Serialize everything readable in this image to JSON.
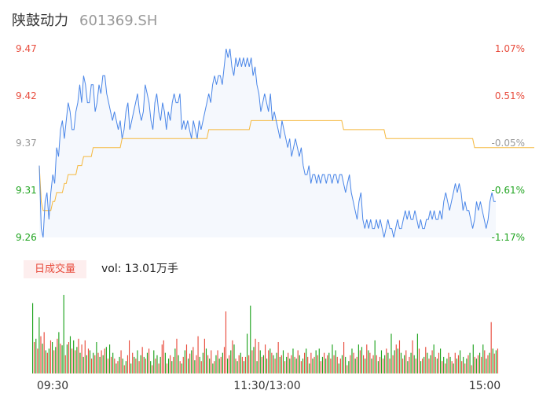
{
  "header": {
    "name": "陕鼓动力",
    "code": "601369.SH"
  },
  "colors": {
    "up": "#e84c3d",
    "down": "#1ea31e",
    "neutral": "#999999",
    "price_line": "#4a86e8",
    "avg_line": "#f5b83d"
  },
  "volume_panel": {
    "badge": "日成交量",
    "label": "vol: 13.01万手"
  },
  "chart_data": [
    {
      "type": "line",
      "name": "intraday-price",
      "y_left_ticks": [
        "9.47",
        "9.42",
        "9.37",
        "9.31",
        "9.26"
      ],
      "y_right_ticks": [
        "1.07%",
        "0.51%",
        "-0.05%",
        "-0.61%",
        "-1.17%"
      ],
      "ylim": [
        9.26,
        9.47
      ],
      "prev_close": 9.375,
      "series": [
        {
          "name": "price",
          "values": [
            9.34,
            9.27,
            9.26,
            9.3,
            9.31,
            9.28,
            9.31,
            9.33,
            9.32,
            9.36,
            9.35,
            9.38,
            9.39,
            9.37,
            9.39,
            9.41,
            9.4,
            9.38,
            9.38,
            9.4,
            9.41,
            9.43,
            9.41,
            9.44,
            9.43,
            9.41,
            9.41,
            9.43,
            9.43,
            9.4,
            9.41,
            9.43,
            9.42,
            9.44,
            9.44,
            9.42,
            9.41,
            9.4,
            9.39,
            9.4,
            9.39,
            9.38,
            9.39,
            9.37,
            9.38,
            9.4,
            9.41,
            9.38,
            9.39,
            9.4,
            9.41,
            9.42,
            9.4,
            9.39,
            9.4,
            9.43,
            9.42,
            9.41,
            9.39,
            9.38,
            9.41,
            9.42,
            9.4,
            9.39,
            9.41,
            9.4,
            9.38,
            9.4,
            9.39,
            9.41,
            9.42,
            9.41,
            9.41,
            9.42,
            9.38,
            9.39,
            9.38,
            9.39,
            9.38,
            9.37,
            9.39,
            9.38,
            9.37,
            9.39,
            9.38,
            9.39,
            9.4,
            9.41,
            9.42,
            9.41,
            9.43,
            9.44,
            9.43,
            9.44,
            9.44,
            9.43,
            9.45,
            9.47,
            9.46,
            9.47,
            9.45,
            9.44,
            9.46,
            9.45,
            9.46,
            9.45,
            9.46,
            9.45,
            9.46,
            9.45,
            9.46,
            9.44,
            9.45,
            9.43,
            9.42,
            9.4,
            9.41,
            9.42,
            9.41,
            9.4,
            9.42,
            9.39,
            9.4,
            9.39,
            9.38,
            9.37,
            9.39,
            9.38,
            9.37,
            9.36,
            9.37,
            9.35,
            9.36,
            9.37,
            9.36,
            9.35,
            9.36,
            9.34,
            9.33,
            9.33,
            9.34,
            9.32,
            9.33,
            9.33,
            9.32,
            9.33,
            9.32,
            9.33,
            9.33,
            9.32,
            9.33,
            9.33,
            9.32,
            9.33,
            9.33,
            9.32,
            9.33,
            9.33,
            9.32,
            9.31,
            9.32,
            9.33,
            9.31,
            9.3,
            9.29,
            9.28,
            9.3,
            9.31,
            9.28,
            9.27,
            9.28,
            9.27,
            9.28,
            9.27,
            9.27,
            9.28,
            9.27,
            9.28,
            9.27,
            9.26,
            9.27,
            9.28,
            9.27,
            9.27,
            9.26,
            9.27,
            9.28,
            9.27,
            9.27,
            9.28,
            9.29,
            9.28,
            9.29,
            9.28,
            9.28,
            9.29,
            9.28,
            9.27,
            9.28,
            9.27,
            9.27,
            9.28,
            9.28,
            9.29,
            9.28,
            9.29,
            9.28,
            9.28,
            9.29,
            9.28,
            9.3,
            9.31,
            9.3,
            9.29,
            9.3,
            9.31,
            9.32,
            9.31,
            9.32,
            9.31,
            9.29,
            9.3,
            9.29,
            9.29,
            9.28,
            9.27,
            9.28,
            9.3,
            9.29,
            9.3,
            9.29,
            9.28,
            9.27,
            9.28,
            9.3,
            9.31,
            9.3,
            9.3
          ]
        },
        {
          "name": "average",
          "values": [
            9.34,
            9.3,
            9.29,
            9.29,
            9.29,
            9.29,
            9.29,
            9.3,
            9.3,
            9.31,
            9.31,
            9.31,
            9.31,
            9.32,
            9.32,
            9.33,
            9.33,
            9.33,
            9.33,
            9.33,
            9.34,
            9.34,
            9.34,
            9.35,
            9.35,
            9.35,
            9.35,
            9.35,
            9.36,
            9.36,
            9.36,
            9.36,
            9.36,
            9.36,
            9.36,
            9.36,
            9.36,
            9.36,
            9.36,
            9.36,
            9.36,
            9.36,
            9.36,
            9.37,
            9.37,
            9.37,
            9.37,
            9.37,
            9.37,
            9.37,
            9.37,
            9.37,
            9.37,
            9.37,
            9.37,
            9.37,
            9.37,
            9.37,
            9.37,
            9.37,
            9.37,
            9.37,
            9.37,
            9.37,
            9.37,
            9.37,
            9.37,
            9.37,
            9.37,
            9.37,
            9.37,
            9.37,
            9.37,
            9.37,
            9.37,
            9.37,
            9.37,
            9.37,
            9.37,
            9.37,
            9.37,
            9.37,
            9.37,
            9.37,
            9.37,
            9.37,
            9.37,
            9.37,
            9.38,
            9.38,
            9.38,
            9.38,
            9.38,
            9.38,
            9.38,
            9.38,
            9.38,
            9.38,
            9.38,
            9.38,
            9.38,
            9.38,
            9.38,
            9.38,
            9.38,
            9.38,
            9.38,
            9.38,
            9.38,
            9.38,
            9.39,
            9.39,
            9.39,
            9.39,
            9.39,
            9.39,
            9.39,
            9.39,
            9.39,
            9.39,
            9.39,
            9.39,
            9.39,
            9.39,
            9.39,
            9.39,
            9.39,
            9.39,
            9.39,
            9.39,
            9.39,
            9.39,
            9.39,
            9.39,
            9.39,
            9.39,
            9.39,
            9.39,
            9.39,
            9.39,
            9.39,
            9.39,
            9.39,
            9.39,
            9.39,
            9.39,
            9.39,
            9.39,
            9.39,
            9.39,
            9.39,
            9.39,
            9.39,
            9.39,
            9.39,
            9.39,
            9.39,
            9.39,
            9.38,
            9.38,
            9.38,
            9.38,
            9.38,
            9.38,
            9.38,
            9.38,
            9.38,
            9.38,
            9.38,
            9.38,
            9.38,
            9.38,
            9.38,
            9.38,
            9.38,
            9.38,
            9.38,
            9.38,
            9.38,
            9.38,
            9.37,
            9.37,
            9.37,
            9.37,
            9.37,
            9.37,
            9.37,
            9.37,
            9.37,
            9.37,
            9.37,
            9.37,
            9.37,
            9.37,
            9.37,
            9.37,
            9.37,
            9.37,
            9.37,
            9.37,
            9.37,
            9.37,
            9.37,
            9.37,
            9.37,
            9.37,
            9.37,
            9.37,
            9.37,
            9.37,
            9.37,
            9.37,
            9.37,
            9.37,
            9.37,
            9.37,
            9.37,
            9.37,
            9.37,
            9.37,
            9.37,
            9.37,
            9.37,
            9.37,
            9.37,
            9.37,
            9.36,
            9.36,
            9.36,
            9.36,
            9.36,
            9.36,
            9.36,
            9.36,
            9.36,
            9.36,
            9.36,
            9.36,
            9.36,
            9.36,
            9.36,
            9.36,
            9.36,
            9.36,
            9.36,
            9.36,
            9.36,
            9.36,
            9.36,
            9.36,
            9.36,
            9.36,
            9.36,
            9.36,
            9.36,
            9.36,
            9.36,
            9.36
          ]
        }
      ]
    },
    {
      "type": "bar",
      "name": "volume",
      "x_ticks": [
        "09:30",
        "11:30/13:00",
        "15:00"
      ],
      "values": [
        85,
        38,
        42,
        30,
        68,
        45,
        36,
        50,
        28,
        25,
        30,
        40,
        38,
        28,
        32,
        42,
        50,
        36,
        34,
        95,
        22,
        35,
        38,
        45,
        30,
        40,
        28,
        32,
        42,
        25,
        35,
        20,
        40,
        22,
        30,
        28,
        18,
        25,
        22,
        38,
        25,
        20,
        28,
        22,
        30,
        32,
        18,
        35,
        20,
        25,
        18,
        12,
        15,
        20,
        28,
        18,
        10,
        15,
        22,
        40,
        12,
        25,
        20,
        18,
        28,
        15,
        22,
        32,
        20,
        18,
        25,
        30,
        15,
        10,
        28,
        18,
        22,
        12,
        20,
        35,
        40,
        25,
        12,
        18,
        22,
        15,
        20,
        30,
        42,
        22,
        15,
        12,
        20,
        28,
        35,
        18,
        24,
        28,
        32,
        16,
        22,
        45,
        20,
        15,
        25,
        42,
        30,
        22,
        18,
        28,
        12,
        15,
        22,
        28,
        18,
        20,
        25,
        32,
        75,
        18,
        22,
        28,
        40,
        35,
        18,
        15,
        22,
        25,
        20,
        15,
        20,
        48,
        22,
        82,
        28,
        32,
        42,
        15,
        38,
        28,
        20,
        22,
        35,
        18,
        28,
        30,
        25,
        22,
        18,
        25,
        38,
        20,
        22,
        28,
        15,
        20,
        25,
        18,
        22,
        30,
        20,
        18,
        28,
        22,
        15,
        18,
        25,
        30,
        20,
        12,
        25,
        18,
        20,
        28,
        22,
        30,
        15,
        20,
        25,
        18,
        22,
        25,
        18,
        35,
        22,
        28,
        20,
        12,
        18,
        22,
        38,
        20,
        10,
        15,
        22,
        30,
        25,
        18,
        20,
        35,
        28,
        32,
        22,
        18,
        35,
        28,
        25,
        18,
        22,
        40,
        22,
        15,
        20,
        28,
        18,
        22,
        30,
        25,
        18,
        48,
        22,
        28,
        35,
        30,
        40,
        25,
        18,
        22,
        28,
        15,
        20,
        25,
        40,
        22,
        18,
        48,
        30,
        15,
        18,
        20,
        32,
        25,
        18,
        22,
        28,
        35,
        20,
        18,
        25,
        30,
        15,
        20,
        12,
        18,
        25,
        20,
        15,
        12,
        25,
        18,
        22,
        28,
        15,
        20,
        12,
        18,
        22,
        25,
        10,
        35,
        20,
        18,
        22,
        25,
        20,
        35,
        28,
        18,
        22,
        25,
        62,
        30,
        24,
        28,
        30
      ],
      "colors": [
        "g",
        "r",
        "g",
        "r",
        "g",
        "r",
        "g",
        "r",
        "g",
        "r",
        "g",
        "r",
        "g",
        "r",
        "g",
        "r",
        "g",
        "r",
        "g",
        "g",
        "r",
        "g",
        "r",
        "g",
        "r",
        "g",
        "r",
        "g",
        "r",
        "g",
        "r",
        "g",
        "r",
        "g",
        "r",
        "g",
        "r",
        "g",
        "r",
        "g",
        "r",
        "g",
        "r",
        "g",
        "r",
        "g",
        "r",
        "g",
        "r",
        "g",
        "r",
        "g",
        "r",
        "g",
        "r",
        "g",
        "r",
        "g",
        "r",
        "r",
        "g",
        "r",
        "g",
        "r",
        "g",
        "r",
        "g",
        "r",
        "g",
        "r",
        "g",
        "r",
        "g",
        "r",
        "g",
        "r",
        "g",
        "r",
        "g",
        "r",
        "r",
        "g",
        "r",
        "g",
        "r",
        "g",
        "r",
        "g",
        "r",
        "g",
        "r",
        "g",
        "r",
        "g",
        "r",
        "g",
        "r",
        "g",
        "r",
        "g",
        "r",
        "r",
        "g",
        "r",
        "g",
        "r",
        "g",
        "r",
        "g",
        "r",
        "g",
        "r",
        "g",
        "r",
        "g",
        "r",
        "g",
        "r",
        "r",
        "g",
        "r",
        "g",
        "r",
        "g",
        "r",
        "g",
        "r",
        "g",
        "r",
        "g",
        "r",
        "g",
        "r",
        "g",
        "r",
        "g",
        "r",
        "g",
        "r",
        "g",
        "r",
        "g",
        "r",
        "g",
        "r",
        "g",
        "r",
        "g",
        "r",
        "g",
        "r",
        "g",
        "r",
        "g",
        "r",
        "g",
        "r",
        "g",
        "r",
        "g",
        "r",
        "g",
        "r",
        "g",
        "r",
        "g",
        "r",
        "g",
        "r",
        "g",
        "r",
        "g",
        "r",
        "g",
        "r",
        "g",
        "r",
        "g",
        "r",
        "g",
        "r",
        "g",
        "r",
        "g",
        "r",
        "g",
        "r",
        "g",
        "r",
        "g",
        "r",
        "g",
        "r",
        "g",
        "r",
        "g",
        "r",
        "g",
        "r",
        "g",
        "r",
        "g",
        "r",
        "g",
        "r",
        "g",
        "r",
        "g",
        "r",
        "g",
        "r",
        "g",
        "r",
        "g",
        "r",
        "g",
        "r",
        "g",
        "r",
        "g",
        "r",
        "g",
        "r",
        "g",
        "r",
        "g",
        "r",
        "g",
        "r",
        "g",
        "r",
        "g",
        "r",
        "g",
        "r",
        "g",
        "r",
        "g",
        "r",
        "g",
        "r",
        "g",
        "r",
        "g",
        "r",
        "g",
        "r",
        "g",
        "r",
        "g",
        "r",
        "g",
        "r",
        "g",
        "r",
        "g",
        "r",
        "g",
        "r",
        "g",
        "r",
        "g",
        "r",
        "g",
        "r",
        "g",
        "r",
        "g",
        "r",
        "g",
        "r",
        "g",
        "r",
        "g",
        "r",
        "g",
        "r",
        "g",
        "r",
        "g",
        "r",
        "g",
        "r",
        "g",
        "r",
        "g",
        "r",
        "g",
        "r",
        "r",
        "r"
      ]
    }
  ]
}
